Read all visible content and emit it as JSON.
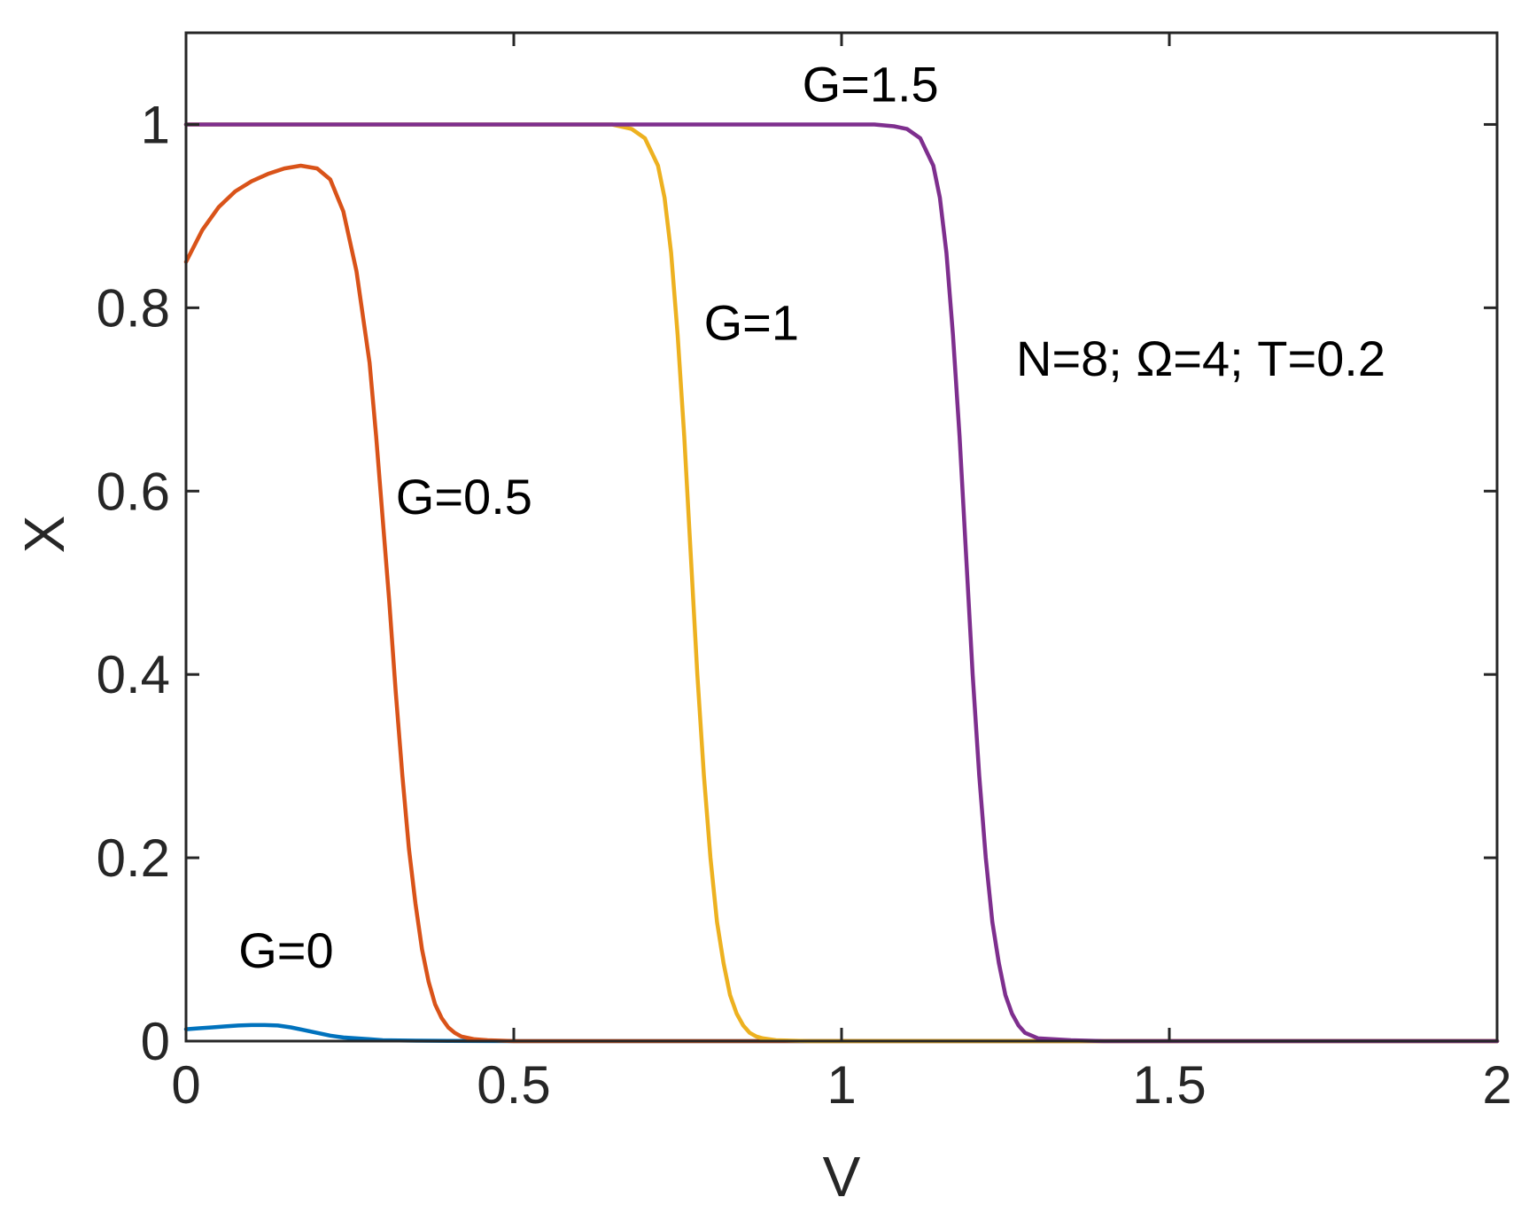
{
  "chart_data": {
    "type": "line",
    "title": "",
    "xlabel": "V",
    "ylabel": "X",
    "xlim": [
      0,
      2
    ],
    "ylim": [
      0,
      1.1
    ],
    "xticks": [
      0,
      0.5,
      1,
      1.5,
      2
    ],
    "yticks": [
      0,
      0.2,
      0.4,
      0.6,
      0.8,
      1
    ],
    "x_tick_labels": [
      "0",
      "0.5",
      "1",
      "1.5",
      "2"
    ],
    "y_tick_labels": [
      "0",
      "0.2",
      "0.4",
      "0.6",
      "0.8",
      "1"
    ],
    "grid": false,
    "legend": "none",
    "parameters_annotation": "N=8; Ω=4; T=0.2",
    "series": [
      {
        "label": "G=0",
        "color": "#0072BD",
        "label_anchor": [
          0.08,
          0.08
        ],
        "x": [
          0,
          0.02,
          0.04,
          0.06,
          0.08,
          0.1,
          0.12,
          0.14,
          0.16,
          0.18,
          0.2,
          0.22,
          0.24,
          0.26,
          0.28,
          0.3,
          0.35,
          0.4,
          0.5,
          0.6,
          0.8,
          1,
          1.5,
          2
        ],
        "y": [
          0.013,
          0.014,
          0.015,
          0.016,
          0.017,
          0.0175,
          0.0175,
          0.017,
          0.015,
          0.012,
          0.009,
          0.006,
          0.004,
          0.003,
          0.002,
          0.001,
          0.0005,
          0.0002,
          0,
          0,
          0,
          0,
          0,
          0
        ]
      },
      {
        "label": "G=0.5",
        "color": "#D95319",
        "label_anchor": [
          0.32,
          0.575
        ],
        "x": [
          0,
          0.025,
          0.05,
          0.075,
          0.1,
          0.125,
          0.15,
          0.175,
          0.2,
          0.22,
          0.24,
          0.26,
          0.28,
          0.29,
          0.3,
          0.31,
          0.32,
          0.33,
          0.34,
          0.35,
          0.36,
          0.37,
          0.38,
          0.39,
          0.4,
          0.41,
          0.42,
          0.44,
          0.46,
          0.5,
          0.6,
          0.8,
          1,
          1.5,
          2
        ],
        "y": [
          0.85,
          0.885,
          0.91,
          0.927,
          0.938,
          0.946,
          0.952,
          0.955,
          0.952,
          0.94,
          0.905,
          0.84,
          0.74,
          0.66,
          0.57,
          0.48,
          0.38,
          0.29,
          0.21,
          0.15,
          0.1,
          0.065,
          0.04,
          0.025,
          0.015,
          0.009,
          0.005,
          0.002,
          0.001,
          0,
          0,
          0,
          0,
          0,
          0
        ]
      },
      {
        "label": "G=1",
        "color": "#EDB120",
        "label_anchor": [
          0.79,
          0.765
        ],
        "x": [
          0,
          0.2,
          0.4,
          0.6,
          0.65,
          0.68,
          0.7,
          0.72,
          0.73,
          0.74,
          0.75,
          0.76,
          0.77,
          0.78,
          0.79,
          0.8,
          0.81,
          0.82,
          0.83,
          0.84,
          0.85,
          0.86,
          0.87,
          0.88,
          0.9,
          0.95,
          1,
          1.5,
          2
        ],
        "y": [
          1,
          1,
          1,
          1,
          1,
          0.995,
          0.985,
          0.955,
          0.92,
          0.86,
          0.77,
          0.66,
          0.53,
          0.4,
          0.29,
          0.2,
          0.13,
          0.085,
          0.05,
          0.03,
          0.017,
          0.009,
          0.005,
          0.003,
          0.001,
          0,
          0,
          0,
          0
        ]
      },
      {
        "label": "G=1.5",
        "color": "#7E2F8E",
        "label_anchor": [
          0.94,
          1.025
        ],
        "x": [
          0,
          0.5,
          1,
          1.05,
          1.08,
          1.1,
          1.12,
          1.14,
          1.15,
          1.16,
          1.17,
          1.18,
          1.19,
          1.2,
          1.21,
          1.22,
          1.23,
          1.24,
          1.25,
          1.26,
          1.27,
          1.28,
          1.3,
          1.35,
          1.4,
          1.5,
          2
        ],
        "y": [
          1,
          1,
          1,
          1,
          0.998,
          0.995,
          0.985,
          0.955,
          0.92,
          0.86,
          0.77,
          0.66,
          0.53,
          0.4,
          0.29,
          0.2,
          0.13,
          0.085,
          0.05,
          0.03,
          0.017,
          0.009,
          0.003,
          0.001,
          0,
          0,
          0
        ]
      }
    ]
  }
}
